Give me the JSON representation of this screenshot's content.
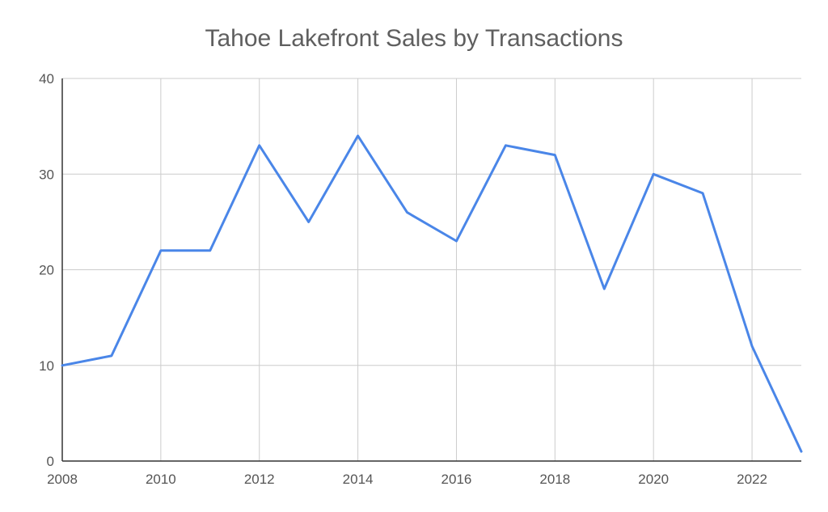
{
  "chart_data": {
    "type": "line",
    "title": "Tahoe Lakefront Sales by Transactions",
    "xlabel": "",
    "ylabel": "",
    "xlim": [
      2008,
      2023
    ],
    "ylim": [
      0,
      40
    ],
    "x_ticks": [
      2008,
      2010,
      2012,
      2014,
      2016,
      2018,
      2020,
      2022
    ],
    "y_ticks": [
      0,
      10,
      20,
      30,
      40
    ],
    "grid": true,
    "legend": "none",
    "series": [
      {
        "color": "#4a86e8",
        "x": [
          2008,
          2009,
          2010,
          2011,
          2012,
          2013,
          2014,
          2015,
          2016,
          2017,
          2018,
          2019,
          2020,
          2021,
          2022,
          2023
        ],
        "values": [
          10,
          11,
          22,
          22,
          33,
          25,
          34,
          26,
          23,
          33,
          32,
          18,
          30,
          28,
          12,
          1
        ]
      }
    ]
  }
}
